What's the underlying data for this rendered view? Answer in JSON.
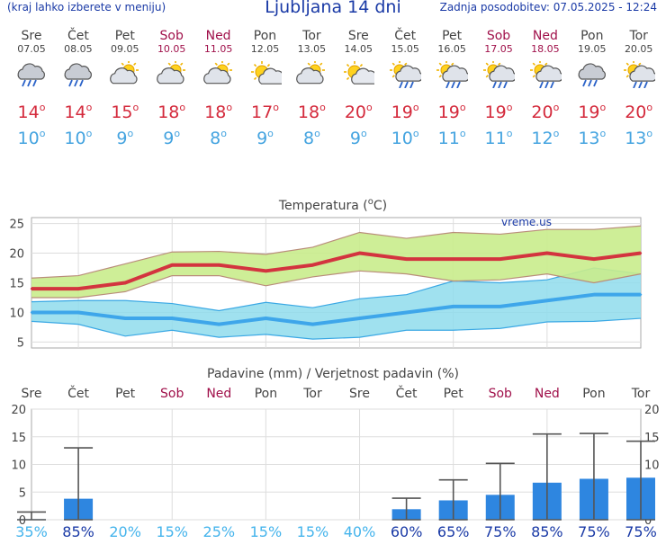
{
  "header": {
    "menu_hint": "(kraj lahko izberete v meniju)",
    "title": "Ljubljana 14 dni",
    "last_update": "Zadnja posodobitev: 07.05.2025 - 12:24"
  },
  "colors": {
    "accent_blue": "#1a3aa6",
    "max_temp": "#d42a3c",
    "min_temp": "#45a4e0",
    "weekend": "#a0104a",
    "precip_bar": "#2e86e0"
  },
  "degree_symbol": "o",
  "days": [
    {
      "name": "Sre",
      "date": "07.05",
      "weekend": false,
      "icon": "cloud-rain-icon",
      "max": "14",
      "min": "10"
    },
    {
      "name": "Čet",
      "date": "08.05",
      "weekend": false,
      "icon": "cloud-rain-icon",
      "max": "14",
      "min": "10"
    },
    {
      "name": "Pet",
      "date": "09.05",
      "weekend": false,
      "icon": "partly-cloudy-icon",
      "max": "15",
      "min": "9"
    },
    {
      "name": "Sob",
      "date": "10.05",
      "weekend": true,
      "icon": "partly-cloudy-icon",
      "max": "18",
      "min": "9"
    },
    {
      "name": "Ned",
      "date": "11.05",
      "weekend": true,
      "icon": "partly-cloudy-icon",
      "max": "18",
      "min": "8"
    },
    {
      "name": "Pon",
      "date": "12.05",
      "weekend": false,
      "icon": "sun-cloud-icon",
      "max": "17",
      "min": "9"
    },
    {
      "name": "Tor",
      "date": "13.05",
      "weekend": false,
      "icon": "partly-cloudy-icon",
      "max": "18",
      "min": "8"
    },
    {
      "name": "Sre",
      "date": "14.05",
      "weekend": false,
      "icon": "sun-cloud-icon",
      "max": "20",
      "min": "9"
    },
    {
      "name": "Čet",
      "date": "15.05",
      "weekend": false,
      "icon": "sun-cloud-rain-icon",
      "max": "19",
      "min": "10"
    },
    {
      "name": "Pet",
      "date": "16.05",
      "weekend": false,
      "icon": "sun-cloud-rain-icon",
      "max": "19",
      "min": "11"
    },
    {
      "name": "Sob",
      "date": "17.05",
      "weekend": true,
      "icon": "sun-cloud-rain-icon",
      "max": "19",
      "min": "11"
    },
    {
      "name": "Ned",
      "date": "18.05",
      "weekend": true,
      "icon": "sun-cloud-rain-icon",
      "max": "20",
      "min": "12"
    },
    {
      "name": "Pon",
      "date": "19.05",
      "weekend": false,
      "icon": "cloud-rain-icon",
      "max": "19",
      "min": "13"
    },
    {
      "name": "Tor",
      "date": "20.05",
      "weekend": false,
      "icon": "sun-cloud-rain-icon",
      "max": "20",
      "min": "13"
    }
  ],
  "chart_data": [
    {
      "type": "line",
      "title": "Temperatura (°C)",
      "title_parts": {
        "before": "Temperatura (",
        "sup": "o",
        "after": "C)"
      },
      "watermark": "vreme.us",
      "ylim": [
        4,
        26
      ],
      "yticks": [
        5,
        10,
        15,
        20,
        25
      ],
      "grid": true,
      "x": [
        "07.05",
        "08.05",
        "09.05",
        "10.05",
        "11.05",
        "12.05",
        "13.05",
        "14.05",
        "15.05",
        "16.05",
        "17.05",
        "18.05",
        "19.05",
        "20.05"
      ],
      "series": [
        {
          "name": "max",
          "values": [
            14,
            14,
            15,
            18,
            18,
            17,
            18,
            20,
            19,
            19,
            19,
            20,
            19,
            20
          ],
          "range_low": [
            12.5,
            12.5,
            13.5,
            16.2,
            16.2,
            14.5,
            16,
            17,
            16.5,
            15.3,
            15.5,
            16.5,
            15,
            16.5
          ],
          "range_high": [
            15.8,
            16.2,
            18.2,
            20.2,
            20.3,
            19.8,
            21,
            23.5,
            22.5,
            23.5,
            23.2,
            24,
            24,
            24.6
          ]
        },
        {
          "name": "min",
          "values": [
            10,
            10,
            9,
            9,
            8,
            9,
            8,
            9,
            10,
            11,
            11,
            12,
            13,
            13
          ],
          "range_low": [
            8.5,
            8,
            6,
            7,
            5.8,
            6.3,
            5.5,
            5.8,
            7,
            7,
            7.3,
            8.4,
            8.5,
            9
          ],
          "range_high": [
            11.8,
            12,
            12,
            11.5,
            10.3,
            11.7,
            10.8,
            12.3,
            13,
            15.3,
            15,
            15.5,
            17.5,
            16.5
          ]
        }
      ]
    },
    {
      "type": "bar",
      "title": "Padavine (mm) / Verjetnost padavin (%)",
      "ylim": [
        0,
        20
      ],
      "yticks": [
        0,
        5,
        10,
        15,
        20
      ],
      "grid": true,
      "categories": [
        "Sre",
        "Čet",
        "Pet",
        "Sob",
        "Ned",
        "Pon",
        "Tor",
        "Sre",
        "Čet",
        "Pet",
        "Sob",
        "Ned",
        "Pon",
        "Tor"
      ],
      "weekend": [
        false,
        false,
        false,
        true,
        true,
        false,
        false,
        false,
        false,
        false,
        true,
        true,
        false,
        false
      ],
      "values": [
        0.1,
        3.8,
        0,
        0,
        0,
        0,
        0,
        0,
        1.9,
        3.5,
        4.5,
        6.7,
        7.4,
        7.6
      ],
      "error_high": [
        1.4,
        13,
        0,
        0,
        0,
        0,
        0,
        0,
        3.9,
        7.2,
        10.2,
        15.5,
        15.6,
        14.2
      ],
      "probability": [
        "35%",
        "85%",
        "20%",
        "15%",
        "25%",
        "15%",
        "15%",
        "40%",
        "60%",
        "65%",
        "75%",
        "85%",
        "75%",
        "75%"
      ]
    }
  ]
}
